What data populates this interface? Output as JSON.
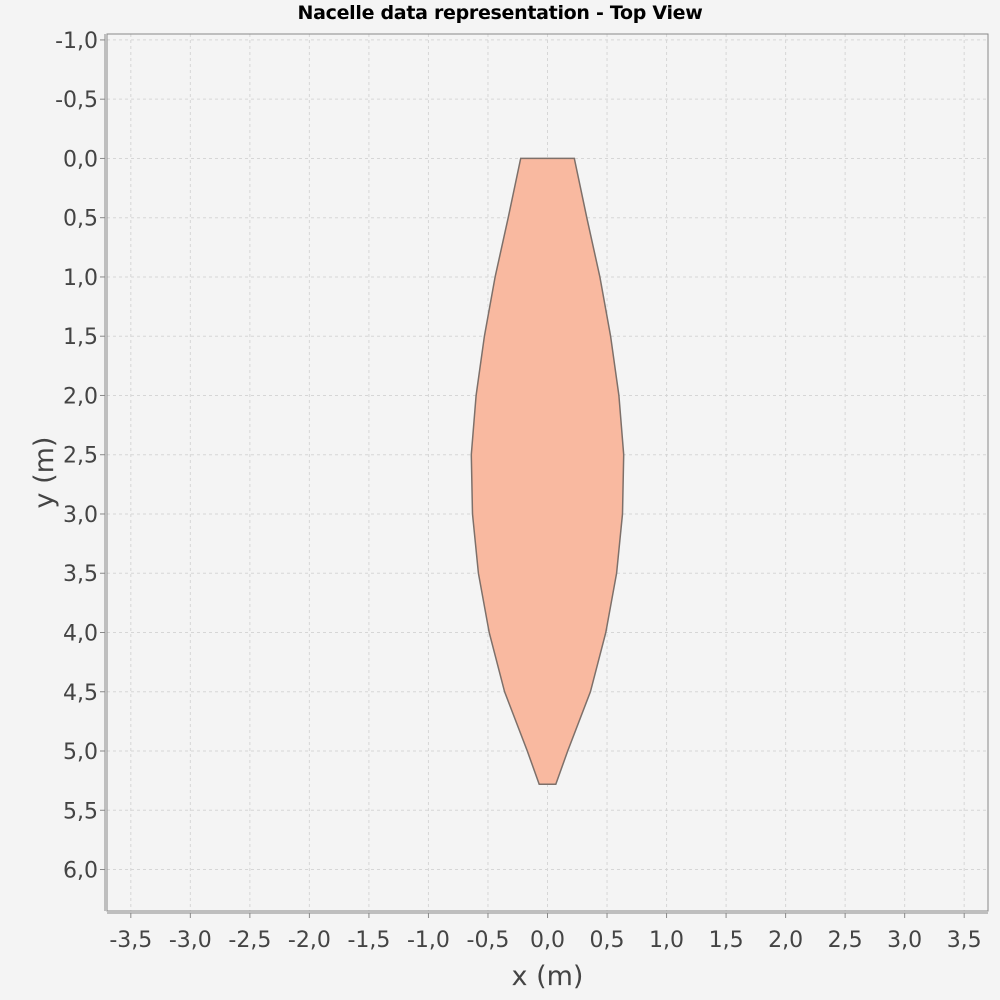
{
  "chart_data": {
    "type": "area",
    "title": "Nacelle data representation - Top View",
    "xlabel": "x (m)",
    "ylabel": "y (m)",
    "xlim": [
      -3.7,
      3.7
    ],
    "ylim": [
      -1.05,
      6.35
    ],
    "y_inverted": true,
    "grid": true,
    "x_ticks": [
      -3.5,
      -3.0,
      -2.5,
      -2.0,
      -1.5,
      -1.0,
      -0.5,
      0.0,
      0.5,
      1.0,
      1.5,
      2.0,
      2.5,
      3.0,
      3.5
    ],
    "x_tick_labels": [
      "-3,5",
      "-3,0",
      "-2,5",
      "-2,0",
      "-1,5",
      "-1,0",
      "-0,5",
      "0,0",
      "0,5",
      "1,0",
      "1,5",
      "2,0",
      "2,5",
      "3,0",
      "3,5"
    ],
    "y_ticks": [
      -1.0,
      -0.5,
      0.0,
      0.5,
      1.0,
      1.5,
      2.0,
      2.5,
      3.0,
      3.5,
      4.0,
      4.5,
      5.0,
      5.5,
      6.0
    ],
    "y_tick_labels": [
      "-1,0",
      "-0,5",
      "0,0",
      "0,5",
      "1,0",
      "1,5",
      "2,0",
      "2,5",
      "3,0",
      "3,5",
      "4,0",
      "4,5",
      "5,0",
      "5,5",
      "6,0"
    ],
    "fill_color": "#f9b9a0",
    "stroke_color": "#7d706a",
    "series": [
      {
        "outline": [
          {
            "x": -0.225,
            "y": 0.0
          },
          {
            "x": 0.225,
            "y": 0.0
          },
          {
            "x": 0.33,
            "y": 0.5
          },
          {
            "x": 0.44,
            "y": 1.0
          },
          {
            "x": 0.53,
            "y": 1.5
          },
          {
            "x": 0.6,
            "y": 2.0
          },
          {
            "x": 0.64,
            "y": 2.5
          },
          {
            "x": 0.63,
            "y": 3.0
          },
          {
            "x": 0.58,
            "y": 3.5
          },
          {
            "x": 0.49,
            "y": 4.0
          },
          {
            "x": 0.36,
            "y": 4.5
          },
          {
            "x": 0.17,
            "y": 5.0
          },
          {
            "x": 0.07,
            "y": 5.28
          },
          {
            "x": -0.07,
            "y": 5.28
          },
          {
            "x": -0.17,
            "y": 5.0
          },
          {
            "x": -0.36,
            "y": 4.5
          },
          {
            "x": -0.49,
            "y": 4.0
          },
          {
            "x": -0.58,
            "y": 3.5
          },
          {
            "x": -0.63,
            "y": 3.0
          },
          {
            "x": -0.64,
            "y": 2.5
          },
          {
            "x": -0.6,
            "y": 2.0
          },
          {
            "x": -0.53,
            "y": 1.5
          },
          {
            "x": -0.44,
            "y": 1.0
          },
          {
            "x": -0.33,
            "y": 0.5
          }
        ]
      }
    ]
  }
}
